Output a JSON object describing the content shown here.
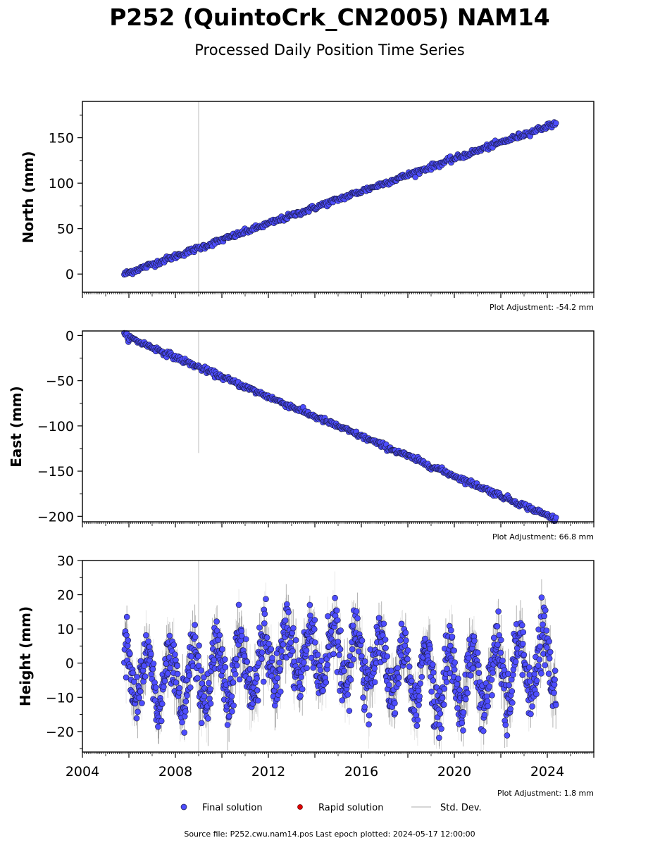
{
  "title": "P252 (QuintoCrk_CN2005) NAM14",
  "subtitle": "Processed Daily Position Time Series",
  "legend": {
    "final": "Final solution",
    "rapid": "Rapid solution",
    "std": "Std. Dev."
  },
  "footer": "Source file: P252.cwu.nam14.pos  Last epoch plotted: 2024-05-17 12:00:00",
  "colors": {
    "final_fill": "#4d4dff",
    "final_edge": "#1a1a40",
    "rapid_fill": "#e00000",
    "std_line": "#c8c8c8",
    "std_dark": "#555555"
  },
  "chart_data": [
    {
      "type": "scatter",
      "name": "north",
      "ylabel": "North (mm)",
      "ylim": [
        -20,
        190
      ],
      "yticks": [
        0,
        50,
        100,
        150
      ],
      "xlim": [
        2004,
        2026
      ],
      "adjustment": "Plot Adjustment: -54.2 mm",
      "start": [
        2005.8,
        0
      ],
      "end": [
        2024.37,
        166
      ],
      "noise_mm": 1.5,
      "outlier": {
        "x": 2009.0,
        "y_min": -20,
        "y_max": 190
      }
    },
    {
      "type": "scatter",
      "name": "east",
      "ylabel": "East (mm)",
      "ylim": [
        -206,
        5
      ],
      "yticks": [
        0,
        -50,
        -100,
        -150,
        -200
      ],
      "xlim": [
        2004,
        2026
      ],
      "adjustment": "Plot Adjustment: 66.8 mm",
      "start": [
        2005.8,
        0
      ],
      "end": [
        2024.37,
        -203
      ],
      "noise_mm": 1.5,
      "outlier": {
        "x": 2009.0,
        "y_min": -130,
        "y_max": 5
      }
    },
    {
      "type": "scatter",
      "name": "height",
      "ylabel": "Height (mm)",
      "ylim": [
        -26,
        30
      ],
      "yticks": [
        -20,
        -10,
        0,
        10,
        20,
        30
      ],
      "xlim": [
        2004,
        2026
      ],
      "xticks": [
        2004,
        2008,
        2012,
        2016,
        2020,
        2024
      ],
      "adjustment": "Plot Adjustment: 1.8 mm",
      "start": [
        2005.8,
        -5
      ],
      "end": [
        2024.37,
        -5
      ],
      "seasonal_amplitude_mm": 9,
      "noise_mm": 4,
      "outlier": {
        "x": 2009.0,
        "y_min": -26,
        "y_max": 30
      }
    }
  ]
}
